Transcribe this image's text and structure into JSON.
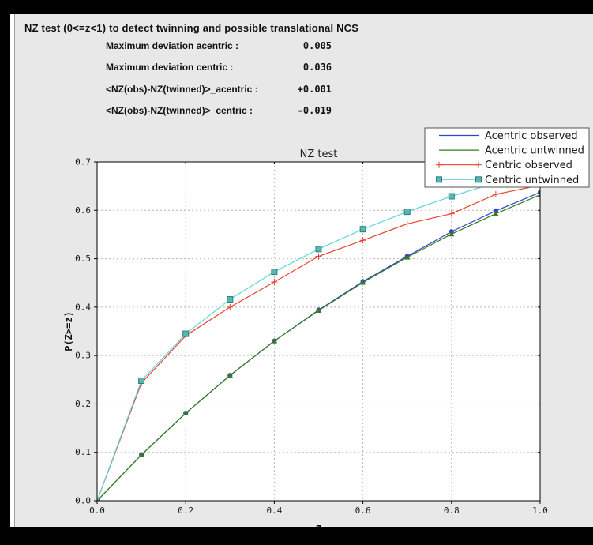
{
  "header": {
    "title": "NZ test (0<=z<1) to detect twinning and possible translational NCS"
  },
  "stats": [
    {
      "label": "Maximum deviation acentric :",
      "value": "0.005"
    },
    {
      "label": "Maximum deviation centric :",
      "value": "0.036"
    },
    {
      "label": "<NZ(obs)-NZ(twinned)>_acentric :",
      "value": "+0.001"
    },
    {
      "label": "<NZ(obs)-NZ(twinned)>_centric :",
      "value": "-0.019"
    }
  ],
  "colors": {
    "panel_bg": "#e8e8e8",
    "plot_bg": "#ffffff",
    "grid": "#b5b5b5",
    "axis": "#000000",
    "blue": "#2e45cf",
    "green": "#377d1f",
    "red": "#e8442f",
    "cyan": "#5cd6e0",
    "teal_fill": "#57b7b3",
    "teal_stroke": "#2d7f7c"
  },
  "chart_data": {
    "type": "line",
    "title": "NZ test",
    "xlabel": "Z",
    "ylabel": "P(Z>=z)",
    "xlim": [
      0.0,
      1.0
    ],
    "ylim": [
      0.0,
      0.7
    ],
    "xticks": [
      0.0,
      0.2,
      0.4,
      0.6,
      0.8,
      1.0
    ],
    "yticks": [
      0.0,
      0.1,
      0.2,
      0.3,
      0.4,
      0.5,
      0.6,
      0.7
    ],
    "grid": true,
    "legend_position": "top-right",
    "x": [
      0.0,
      0.1,
      0.2,
      0.3,
      0.4,
      0.5,
      0.6,
      0.7,
      0.8,
      0.9,
      1.0
    ],
    "series": [
      {
        "name": "Acentric observed",
        "color": "#2e45cf",
        "marker": "circle",
        "values": [
          0.0,
          0.095,
          0.181,
          0.259,
          0.33,
          0.394,
          0.453,
          0.505,
          0.556,
          0.599,
          0.637
        ]
      },
      {
        "name": "Acentric untwinned",
        "color": "#377d1f",
        "marker": "triangle",
        "values": [
          0.0,
          0.095,
          0.181,
          0.259,
          0.33,
          0.393,
          0.451,
          0.503,
          0.551,
          0.593,
          0.632
        ]
      },
      {
        "name": "Centric observed",
        "color": "#e8442f",
        "marker": "plus",
        "values": [
          0.0,
          0.243,
          0.341,
          0.4,
          0.452,
          0.505,
          0.538,
          0.572,
          0.593,
          0.633,
          0.652
        ]
      },
      {
        "name": "Centric untwinned",
        "color": "#5cd6e0",
        "marker": "square",
        "marker_fill": "#57b7b3",
        "marker_stroke": "#2d7f7c",
        "values": [
          0.0,
          0.248,
          0.345,
          0.416,
          0.473,
          0.52,
          0.561,
          0.597,
          0.629,
          0.657,
          0.683
        ]
      }
    ]
  }
}
